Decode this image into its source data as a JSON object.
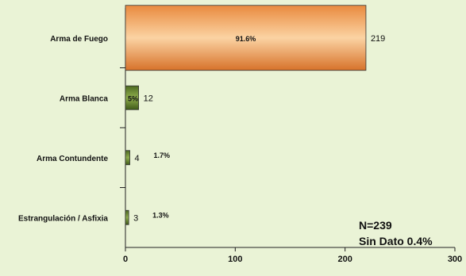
{
  "chart_data": {
    "type": "bar",
    "orientation": "horizontal",
    "categories": [
      "Arma de Fuego",
      "Arma Blanca",
      "Arma Contundente",
      "Estrangulación / Asfixia"
    ],
    "values": [
      219,
      12,
      4,
      3
    ],
    "percent_labels": [
      "91.6%",
      "5%",
      "1.7%",
      "1.3%"
    ],
    "xlim": [
      0,
      300
    ],
    "xticks": [
      0,
      100,
      200,
      300
    ],
    "grid": false,
    "annotations": [
      "N=239",
      "Sin Dato 0.4%"
    ],
    "colors": {
      "background": "#eaf3d6",
      "fuego_bar": "#f1a766",
      "other_bars": "#5e7c2a",
      "axis": "#222222"
    }
  }
}
